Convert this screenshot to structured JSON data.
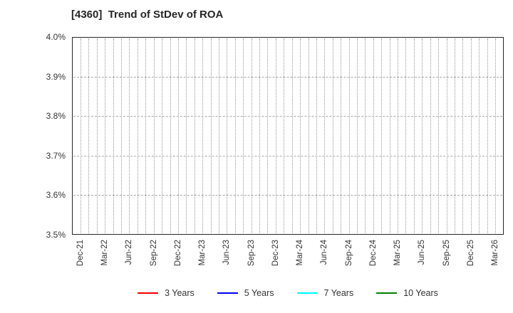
{
  "title": "[4360]  Trend of StDev of ROA",
  "chart_data": {
    "type": "line",
    "title": "[4360]  Trend of StDev of ROA",
    "x_tick_labels": [
      "Dec-21",
      "Mar-22",
      "Jun-22",
      "Sep-22",
      "Dec-22",
      "Mar-23",
      "Jun-23",
      "Sep-23",
      "Dec-23",
      "Mar-24",
      "Jun-24",
      "Sep-24",
      "Dec-24",
      "Mar-25",
      "Jun-25",
      "Sep-25",
      "Dec-25",
      "Mar-26"
    ],
    "y_tick_labels": [
      "4.0%",
      "3.9%",
      "3.8%",
      "3.7%",
      "3.6%",
      "3.5%"
    ],
    "ylim": [
      3.5,
      4.0
    ],
    "y_unit": "percent",
    "series": [
      {
        "name": "3 Years",
        "color": "#ff0000",
        "values": []
      },
      {
        "name": "5 Years",
        "color": "#0000ff",
        "values": []
      },
      {
        "name": "7 Years",
        "color": "#00ffff",
        "values": []
      },
      {
        "name": "10 Years",
        "color": "#008000",
        "values": []
      }
    ],
    "grid": {
      "horizontal": "dashed gray line at each 0.1% step",
      "vertical": "dotted gray lines at monthly intervals (quarterly labeled ticks)"
    },
    "legend_position": "bottom-center",
    "plot_content": "empty - no data lines visible inside axes"
  }
}
